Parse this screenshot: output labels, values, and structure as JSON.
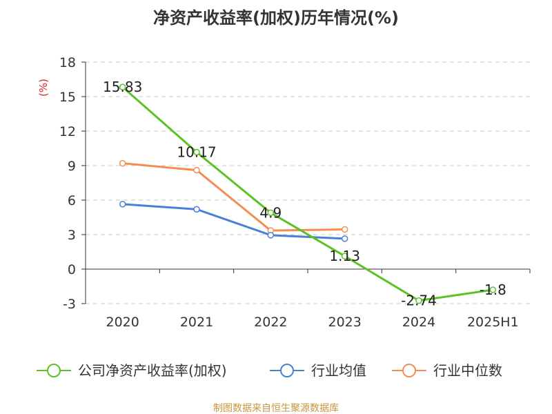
{
  "chart_data": {
    "type": "line",
    "title": "净资产收益率(加权)历年情况(%)",
    "ylabel": "(%)",
    "categories": [
      "2020",
      "2021",
      "2022",
      "2023",
      "2024",
      "2025H1"
    ],
    "ylim": [
      -3,
      18
    ],
    "yticks": [
      -3,
      0,
      3,
      6,
      9,
      12,
      15,
      18
    ],
    "grid": true,
    "legend_position": "bottom",
    "series": [
      {
        "name": "公司净资产收益率(加权)",
        "color": "#5bc225",
        "values": [
          15.83,
          10.17,
          4.9,
          1.13,
          -2.74,
          -1.8
        ],
        "labels": [
          "15.83",
          "10.17",
          "4.9",
          "1.13",
          "-2.74",
          "-1.8"
        ]
      },
      {
        "name": "行业均值",
        "color": "#4a7fd6",
        "values": [
          5.65,
          5.2,
          2.95,
          2.65,
          null,
          null
        ]
      },
      {
        "name": "行业中位数",
        "color": "#f58d52",
        "values": [
          9.2,
          8.6,
          3.35,
          3.45,
          null,
          null
        ]
      }
    ]
  },
  "footer": {
    "source": "制图数据来自恒生聚源数据库"
  }
}
